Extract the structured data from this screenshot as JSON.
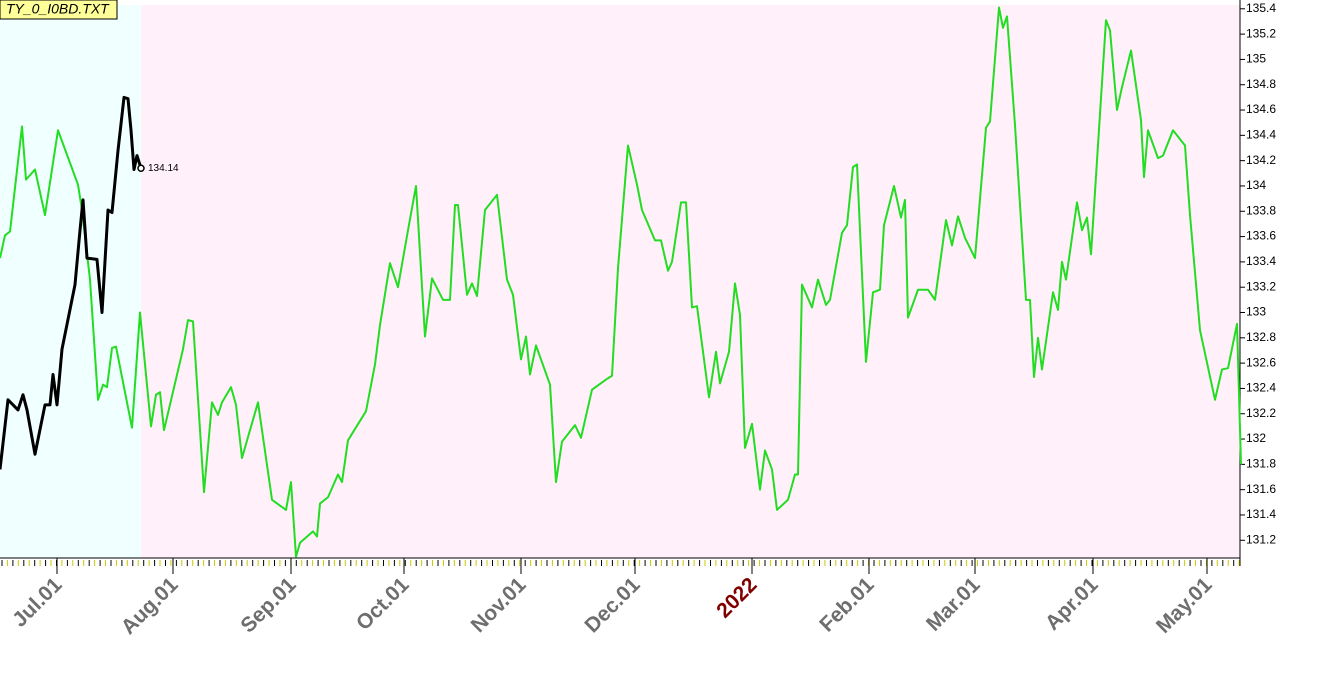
{
  "chart_data": {
    "type": "line",
    "title": "TY_0_I0BD.TXT",
    "xlim": [
      0,
      248
    ],
    "ylim": [
      131.06,
      135.43
    ],
    "xticks": [
      {
        "value": 11.4,
        "label": "Jul.01"
      },
      {
        "value": 34.6,
        "label": "Aug.01"
      },
      {
        "value": 58.2,
        "label": "Sep.01"
      },
      {
        "value": 80.8,
        "label": "Oct.01"
      },
      {
        "value": 104.2,
        "label": "Nov.01"
      },
      {
        "value": 127,
        "label": "Dec.01"
      },
      {
        "value": 150.4,
        "label": "2022",
        "color": "#800000"
      },
      {
        "value": 173.8,
        "label": "Feb.01"
      },
      {
        "value": 195,
        "label": "Mar.01"
      },
      {
        "value": 218.6,
        "label": "Apr.01"
      },
      {
        "value": 241.4,
        "label": "May.01"
      }
    ],
    "x_tick_color": "#6e6e6e",
    "yticks": [
      131.2,
      131.4,
      131.6,
      131.8,
      132,
      132.2,
      132.4,
      132.6,
      132.8,
      133,
      133.2,
      133.4,
      133.6,
      133.8,
      134,
      134.2,
      134.4,
      134.6,
      134.8,
      135,
      135.2,
      135.4
    ],
    "y_axis_side": "right",
    "series": [
      {
        "color": "#22dd22",
        "x": [
          0,
          1,
          2,
          4.4,
          5.2,
          7,
          9,
          11.6,
          15.6,
          16.4,
          18,
          19.6,
          20.6,
          21.4,
          22.4,
          23.2,
          26.4,
          28,
          30.2,
          31.2,
          32,
          32.8,
          36.6,
          37.6,
          38.6,
          40.8,
          42.4,
          43.6,
          44.4,
          46.2,
          47.2,
          48.4,
          51.6,
          54.4,
          57.2,
          58.2,
          59.2,
          60,
          62.6,
          63.4,
          64,
          65.6,
          67.6,
          68.4,
          69.6,
          73.2,
          75,
          76,
          78,
          79.6,
          81.6,
          83.2,
          85,
          86.4,
          88.6,
          90,
          91,
          91.6,
          93.4,
          94.4,
          95.4,
          97,
          99.4,
          101.4,
          102.6,
          104.2,
          105.2,
          106,
          107.2,
          110,
          111.2,
          112.4,
          115,
          116.2,
          118.4,
          121.2,
          122.4,
          123.6,
          125.6,
          127.4,
          128.4,
          131,
          132.2,
          133.6,
          134.4,
          136.2,
          137.2,
          138.4,
          139.4,
          141.8,
          143.2,
          144,
          145.8,
          147,
          148,
          149,
          150.4,
          152,
          153,
          154.4,
          155.4,
          157.6,
          159,
          159.6,
          160.4,
          162.4,
          163.6,
          165.2,
          166,
          168.4,
          169.4,
          170.6,
          171.4,
          173.2,
          174.6,
          176,
          176.8,
          178.8,
          180.2,
          181,
          181.6,
          183.6,
          185.6,
          187,
          189.2,
          190.4,
          191.6,
          193,
          195,
          197.2,
          198,
          199.8,
          200.6,
          201.4,
          203,
          205.2,
          206,
          206.8,
          207.6,
          208.4,
          210.6,
          211.6,
          212.4,
          213.2,
          215.4,
          216.4,
          217.4,
          218.2,
          221.2,
          222,
          223.4,
          224.4,
          226.2,
          228.2,
          228.8,
          229.6,
          231.6,
          232.6,
          234.6,
          237,
          238,
          240,
          243,
          244.4,
          245.6,
          247.4,
          248.2
        ],
        "values": [
          133.43,
          133.61,
          133.64,
          134.47,
          134.05,
          134.13,
          133.77,
          134.44,
          134.01,
          133.81,
          133.26,
          132.31,
          132.43,
          132.41,
          132.72,
          132.73,
          132.09,
          133.0,
          132.1,
          132.35,
          132.37,
          132.07,
          132.71,
          132.94,
          132.93,
          131.58,
          132.29,
          132.19,
          132.29,
          132.41,
          132.27,
          131.85,
          132.29,
          131.52,
          131.44,
          131.66,
          131.07,
          131.18,
          131.27,
          131.23,
          131.49,
          131.54,
          131.72,
          131.66,
          131.99,
          132.22,
          132.59,
          132.9,
          133.39,
          133.2,
          133.65,
          134.0,
          132.81,
          133.27,
          133.1,
          133.1,
          133.85,
          133.85,
          133.14,
          133.23,
          133.13,
          133.81,
          133.93,
          133.26,
          133.14,
          132.63,
          132.81,
          132.51,
          132.74,
          132.43,
          131.66,
          131.98,
          132.11,
          132.01,
          132.39,
          132.47,
          132.5,
          133.35,
          134.32,
          134.01,
          133.81,
          133.57,
          133.57,
          133.33,
          133.4,
          133.87,
          133.87,
          133.04,
          133.05,
          132.33,
          132.69,
          132.44,
          132.69,
          133.23,
          132.98,
          131.93,
          132.12,
          131.6,
          131.91,
          131.76,
          131.44,
          131.52,
          131.72,
          131.72,
          133.22,
          133.04,
          133.26,
          133.06,
          133.1,
          133.63,
          133.69,
          134.15,
          134.17,
          132.61,
          133.16,
          133.18,
          133.69,
          134.0,
          133.75,
          133.89,
          132.96,
          133.18,
          133.18,
          133.1,
          133.73,
          133.53,
          133.76,
          133.59,
          133.43,
          134.46,
          134.51,
          135.41,
          135.25,
          135.34,
          134.48,
          133.1,
          133.1,
          132.49,
          132.8,
          132.55,
          133.16,
          133.02,
          133.4,
          133.26,
          133.87,
          133.65,
          133.75,
          133.46,
          135.31,
          135.23,
          134.6,
          134.78,
          135.07,
          134.52,
          134.07,
          134.44,
          134.22,
          134.24,
          134.44,
          134.32,
          133.77,
          132.86,
          132.31,
          132.55,
          132.56,
          132.91,
          131.8
        ]
      },
      {
        "color": "#000000",
        "last_value_label": true,
        "region_color": "#f0ffff",
        "x": [
          0,
          1.6,
          3.6,
          4.6,
          5.4,
          7,
          9,
          10,
          10.6,
          11.4,
          12.4,
          15,
          16,
          16.6,
          17.4,
          19.4,
          20.4,
          21.6,
          22.4,
          23.6,
          24.8,
          25.6,
          26.2,
          26.8,
          27.4,
          28.2
        ],
        "values": [
          131.76,
          132.31,
          132.23,
          132.35,
          132.23,
          131.88,
          132.27,
          132.27,
          132.51,
          132.27,
          132.71,
          133.22,
          133.65,
          133.89,
          133.43,
          133.42,
          133.0,
          133.81,
          133.79,
          134.28,
          134.7,
          134.69,
          134.44,
          134.13,
          134.24,
          134.14
        ]
      }
    ],
    "background_color": "#fff0fa"
  }
}
